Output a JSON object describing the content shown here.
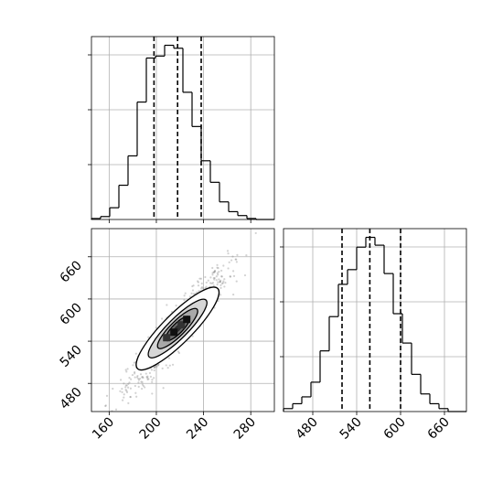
{
  "chart_data": [
    {
      "panel": "top-left",
      "type": "histogram",
      "variable": "x",
      "xlim": [
        145,
        300
      ],
      "bin_edges": [
        145,
        152.75,
        160.5,
        168.25,
        176,
        183.75,
        191.5,
        199.25,
        207,
        214.75,
        222.5,
        230.25,
        238,
        245.75,
        253.5,
        261.25,
        269,
        276.75,
        284.5,
        292.25,
        300
      ],
      "counts": [
        1,
        3,
        12,
        35,
        65,
        120,
        165,
        167,
        178,
        175,
        130,
        95,
        60,
        38,
        18,
        8,
        4,
        1,
        0,
        0
      ],
      "quantile_lines": [
        198,
        218,
        238
      ],
      "x_ticks": [
        "160",
        "200",
        "240",
        "280"
      ],
      "x_tick_labels_shown": false,
      "y_tick_labels_shown": false,
      "grid": true
    },
    {
      "panel": "bottom-left",
      "type": "scatter-with-density-contours",
      "x_variable": "x",
      "y_variable": "y",
      "xlim": [
        145,
        300
      ],
      "ylim": [
        440,
        700
      ],
      "x_ticks": [
        "160",
        "200",
        "240",
        "280"
      ],
      "y_ticks": [
        "480",
        "540",
        "600",
        "660"
      ],
      "correlation": 0.93,
      "center": [
        218,
        558
      ],
      "grid": true
    },
    {
      "panel": "bottom-right",
      "type": "histogram",
      "variable": "y",
      "xlim": [
        440,
        690
      ],
      "bin_edges": [
        440,
        452.5,
        465,
        477.5,
        490,
        502.5,
        515,
        527.5,
        540,
        552.5,
        565,
        577.5,
        590,
        602.5,
        615,
        627.5,
        640,
        652.5,
        665,
        677.5,
        690
      ],
      "counts": [
        3,
        8,
        15,
        30,
        62,
        97,
        130,
        145,
        168,
        178,
        170,
        141,
        100,
        70,
        38,
        18,
        8,
        3,
        0,
        0
      ],
      "quantile_lines": [
        520,
        558,
        600
      ],
      "x_ticks": [
        "480",
        "540",
        "600",
        "660"
      ],
      "y_tick_labels_shown": false,
      "grid": true
    }
  ],
  "colors": {
    "line": "#000000",
    "grid": "#b0b0b0",
    "points": "#7f7f7f",
    "density_levels": [
      "#d6d6d6",
      "#a8a8a8",
      "#6e6e6e",
      "#2e2e2e"
    ]
  }
}
